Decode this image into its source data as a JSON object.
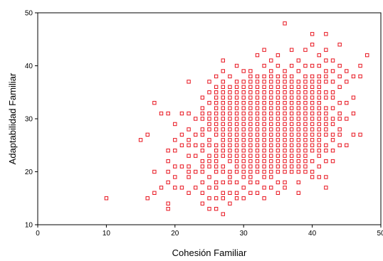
{
  "chart_data": {
    "type": "scatter",
    "title": "",
    "xlabel": "Cohesión Familiar",
    "ylabel": "Adaptabilidad Familiar",
    "xlim": [
      0,
      50
    ],
    "ylim": [
      10,
      50
    ],
    "x_ticks": [
      "0",
      "10",
      "20",
      "30",
      "40",
      "50"
    ],
    "y_ticks": [
      "10",
      "20",
      "30",
      "40",
      "50"
    ],
    "grid": false,
    "legend": "none",
    "marker": "hollow-square",
    "marker_color": "#e8141e",
    "points": [
      [
        10,
        15
      ],
      [
        15,
        26
      ],
      [
        16,
        15
      ],
      [
        16,
        27
      ],
      [
        17,
        16
      ],
      [
        17,
        20
      ],
      [
        17,
        33
      ],
      [
        18,
        17
      ],
      [
        18,
        31
      ],
      [
        19,
        13
      ],
      [
        19,
        14
      ],
      [
        19,
        18
      ],
      [
        19,
        20
      ],
      [
        19,
        22
      ],
      [
        19,
        24
      ],
      [
        19,
        31
      ],
      [
        20,
        17
      ],
      [
        20,
        19
      ],
      [
        20,
        21
      ],
      [
        20,
        24
      ],
      [
        20,
        26
      ],
      [
        20,
        29
      ],
      [
        21,
        17
      ],
      [
        21,
        21
      ],
      [
        21,
        25
      ],
      [
        21,
        27
      ],
      [
        21,
        31
      ],
      [
        22,
        16
      ],
      [
        22,
        19
      ],
      [
        22,
        20
      ],
      [
        22,
        21
      ],
      [
        22,
        23
      ],
      [
        22,
        25
      ],
      [
        22,
        26
      ],
      [
        22,
        28
      ],
      [
        22,
        31
      ],
      [
        22,
        37
      ],
      [
        23,
        17
      ],
      [
        23,
        20
      ],
      [
        23,
        23
      ],
      [
        23,
        25
      ],
      [
        23,
        27
      ],
      [
        23,
        30
      ],
      [
        24,
        14
      ],
      [
        24,
        16
      ],
      [
        24,
        18
      ],
      [
        24,
        20
      ],
      [
        24,
        21
      ],
      [
        24,
        22
      ],
      [
        24,
        24
      ],
      [
        24,
        25
      ],
      [
        24,
        27
      ],
      [
        24,
        28
      ],
      [
        24,
        30
      ],
      [
        24,
        31
      ],
      [
        24,
        32
      ],
      [
        24,
        34
      ],
      [
        25,
        13
      ],
      [
        25,
        15
      ],
      [
        25,
        17
      ],
      [
        25,
        19
      ],
      [
        25,
        21
      ],
      [
        25,
        22
      ],
      [
        25,
        23
      ],
      [
        25,
        25
      ],
      [
        25,
        26
      ],
      [
        25,
        28
      ],
      [
        25,
        29
      ],
      [
        25,
        30
      ],
      [
        25,
        31
      ],
      [
        25,
        33
      ],
      [
        25,
        35
      ],
      [
        25,
        37
      ],
      [
        26,
        13
      ],
      [
        26,
        15
      ],
      [
        26,
        17
      ],
      [
        26,
        18
      ],
      [
        26,
        20
      ],
      [
        26,
        21
      ],
      [
        26,
        22
      ],
      [
        26,
        23
      ],
      [
        26,
        24
      ],
      [
        26,
        25
      ],
      [
        26,
        27
      ],
      [
        26,
        28
      ],
      [
        26,
        29
      ],
      [
        26,
        30
      ],
      [
        26,
        31
      ],
      [
        26,
        32
      ],
      [
        26,
        33
      ],
      [
        26,
        34
      ],
      [
        26,
        35
      ],
      [
        26,
        36
      ],
      [
        26,
        38
      ],
      [
        27,
        12
      ],
      [
        27,
        15
      ],
      [
        27,
        16
      ],
      [
        27,
        18
      ],
      [
        27,
        20
      ],
      [
        27,
        21
      ],
      [
        27,
        23
      ],
      [
        27,
        24
      ],
      [
        27,
        25
      ],
      [
        27,
        26
      ],
      [
        27,
        27
      ],
      [
        27,
        28
      ],
      [
        27,
        29
      ],
      [
        27,
        30
      ],
      [
        27,
        31
      ],
      [
        27,
        32
      ],
      [
        27,
        33
      ],
      [
        27,
        34
      ],
      [
        27,
        35
      ],
      [
        27,
        36
      ],
      [
        27,
        37
      ],
      [
        27,
        39
      ],
      [
        27,
        41
      ],
      [
        28,
        14
      ],
      [
        28,
        16
      ],
      [
        28,
        18
      ],
      [
        28,
        19
      ],
      [
        28,
        20
      ],
      [
        28,
        22
      ],
      [
        28,
        23
      ],
      [
        28,
        24
      ],
      [
        28,
        25
      ],
      [
        28,
        26
      ],
      [
        28,
        27
      ],
      [
        28,
        28
      ],
      [
        28,
        29
      ],
      [
        28,
        30
      ],
      [
        28,
        31
      ],
      [
        28,
        32
      ],
      [
        28,
        33
      ],
      [
        28,
        34
      ],
      [
        28,
        35
      ],
      [
        28,
        36
      ],
      [
        28,
        38
      ],
      [
        29,
        15
      ],
      [
        29,
        16
      ],
      [
        29,
        18
      ],
      [
        29,
        20
      ],
      [
        29,
        21
      ],
      [
        29,
        22
      ],
      [
        29,
        23
      ],
      [
        29,
        24
      ],
      [
        29,
        25
      ],
      [
        29,
        26
      ],
      [
        29,
        27
      ],
      [
        29,
        28
      ],
      [
        29,
        29
      ],
      [
        29,
        30
      ],
      [
        29,
        31
      ],
      [
        29,
        32
      ],
      [
        29,
        33
      ],
      [
        29,
        34
      ],
      [
        29,
        35
      ],
      [
        29,
        36
      ],
      [
        29,
        37
      ],
      [
        29,
        40
      ],
      [
        30,
        15
      ],
      [
        30,
        17
      ],
      [
        30,
        19
      ],
      [
        30,
        20
      ],
      [
        30,
        21
      ],
      [
        30,
        22
      ],
      [
        30,
        23
      ],
      [
        30,
        24
      ],
      [
        30,
        25
      ],
      [
        30,
        26
      ],
      [
        30,
        27
      ],
      [
        30,
        28
      ],
      [
        30,
        29
      ],
      [
        30,
        30
      ],
      [
        30,
        31
      ],
      [
        30,
        32
      ],
      [
        30,
        33
      ],
      [
        30,
        34
      ],
      [
        30,
        35
      ],
      [
        30,
        36
      ],
      [
        30,
        37
      ],
      [
        30,
        39
      ],
      [
        31,
        16
      ],
      [
        31,
        18
      ],
      [
        31,
        19
      ],
      [
        31,
        20
      ],
      [
        31,
        21
      ],
      [
        31,
        22
      ],
      [
        31,
        23
      ],
      [
        31,
        24
      ],
      [
        31,
        25
      ],
      [
        31,
        26
      ],
      [
        31,
        27
      ],
      [
        31,
        28
      ],
      [
        31,
        29
      ],
      [
        31,
        30
      ],
      [
        31,
        31
      ],
      [
        31,
        32
      ],
      [
        31,
        33
      ],
      [
        31,
        34
      ],
      [
        31,
        35
      ],
      [
        31,
        36
      ],
      [
        31,
        37
      ],
      [
        31,
        38
      ],
      [
        31,
        39
      ],
      [
        32,
        16
      ],
      [
        32,
        18
      ],
      [
        32,
        20
      ],
      [
        32,
        21
      ],
      [
        32,
        22
      ],
      [
        32,
        23
      ],
      [
        32,
        24
      ],
      [
        32,
        25
      ],
      [
        32,
        26
      ],
      [
        32,
        27
      ],
      [
        32,
        28
      ],
      [
        32,
        29
      ],
      [
        32,
        30
      ],
      [
        32,
        31
      ],
      [
        32,
        32
      ],
      [
        32,
        33
      ],
      [
        32,
        34
      ],
      [
        32,
        35
      ],
      [
        32,
        36
      ],
      [
        32,
        37
      ],
      [
        32,
        38
      ],
      [
        32,
        42
      ],
      [
        33,
        15
      ],
      [
        33,
        17
      ],
      [
        33,
        19
      ],
      [
        33,
        20
      ],
      [
        33,
        21
      ],
      [
        33,
        22
      ],
      [
        33,
        23
      ],
      [
        33,
        24
      ],
      [
        33,
        25
      ],
      [
        33,
        26
      ],
      [
        33,
        27
      ],
      [
        33,
        28
      ],
      [
        33,
        29
      ],
      [
        33,
        30
      ],
      [
        33,
        31
      ],
      [
        33,
        32
      ],
      [
        33,
        33
      ],
      [
        33,
        34
      ],
      [
        33,
        35
      ],
      [
        33,
        36
      ],
      [
        33,
        37
      ],
      [
        33,
        38
      ],
      [
        33,
        40
      ],
      [
        33,
        43
      ],
      [
        34,
        17
      ],
      [
        34,
        19
      ],
      [
        34,
        20
      ],
      [
        34,
        21
      ],
      [
        34,
        22
      ],
      [
        34,
        23
      ],
      [
        34,
        24
      ],
      [
        34,
        25
      ],
      [
        34,
        26
      ],
      [
        34,
        27
      ],
      [
        34,
        28
      ],
      [
        34,
        29
      ],
      [
        34,
        30
      ],
      [
        34,
        31
      ],
      [
        34,
        32
      ],
      [
        34,
        33
      ],
      [
        34,
        34
      ],
      [
        34,
        35
      ],
      [
        34,
        36
      ],
      [
        34,
        37
      ],
      [
        34,
        38
      ],
      [
        34,
        39
      ],
      [
        34,
        41
      ],
      [
        35,
        16
      ],
      [
        35,
        18
      ],
      [
        35,
        20
      ],
      [
        35,
        21
      ],
      [
        35,
        22
      ],
      [
        35,
        23
      ],
      [
        35,
        24
      ],
      [
        35,
        25
      ],
      [
        35,
        26
      ],
      [
        35,
        27
      ],
      [
        35,
        28
      ],
      [
        35,
        29
      ],
      [
        35,
        30
      ],
      [
        35,
        31
      ],
      [
        35,
        32
      ],
      [
        35,
        33
      ],
      [
        35,
        34
      ],
      [
        35,
        35
      ],
      [
        35,
        36
      ],
      [
        35,
        37
      ],
      [
        35,
        38
      ],
      [
        35,
        40
      ],
      [
        35,
        42
      ],
      [
        36,
        17
      ],
      [
        36,
        18
      ],
      [
        36,
        20
      ],
      [
        36,
        21
      ],
      [
        36,
        22
      ],
      [
        36,
        23
      ],
      [
        36,
        24
      ],
      [
        36,
        25
      ],
      [
        36,
        26
      ],
      [
        36,
        27
      ],
      [
        36,
        28
      ],
      [
        36,
        29
      ],
      [
        36,
        30
      ],
      [
        36,
        31
      ],
      [
        36,
        32
      ],
      [
        36,
        33
      ],
      [
        36,
        34
      ],
      [
        36,
        35
      ],
      [
        36,
        36
      ],
      [
        36,
        37
      ],
      [
        36,
        38
      ],
      [
        36,
        39
      ],
      [
        36,
        48
      ],
      [
        37,
        20
      ],
      [
        37,
        21
      ],
      [
        37,
        22
      ],
      [
        37,
        23
      ],
      [
        37,
        24
      ],
      [
        37,
        25
      ],
      [
        37,
        26
      ],
      [
        37,
        27
      ],
      [
        37,
        28
      ],
      [
        37,
        29
      ],
      [
        37,
        30
      ],
      [
        37,
        31
      ],
      [
        37,
        32
      ],
      [
        37,
        33
      ],
      [
        37,
        34
      ],
      [
        37,
        35
      ],
      [
        37,
        36
      ],
      [
        37,
        37
      ],
      [
        37,
        38
      ],
      [
        37,
        40
      ],
      [
        37,
        43
      ],
      [
        38,
        16
      ],
      [
        38,
        18
      ],
      [
        38,
        20
      ],
      [
        38,
        21
      ],
      [
        38,
        22
      ],
      [
        38,
        23
      ],
      [
        38,
        24
      ],
      [
        38,
        25
      ],
      [
        38,
        26
      ],
      [
        38,
        27
      ],
      [
        38,
        28
      ],
      [
        38,
        29
      ],
      [
        38,
        30
      ],
      [
        38,
        31
      ],
      [
        38,
        32
      ],
      [
        38,
        33
      ],
      [
        38,
        34
      ],
      [
        38,
        35
      ],
      [
        38,
        36
      ],
      [
        38,
        37
      ],
      [
        38,
        39
      ],
      [
        38,
        41
      ],
      [
        39,
        20
      ],
      [
        39,
        21
      ],
      [
        39,
        22
      ],
      [
        39,
        23
      ],
      [
        39,
        24
      ],
      [
        39,
        25
      ],
      [
        39,
        26
      ],
      [
        39,
        27
      ],
      [
        39,
        28
      ],
      [
        39,
        29
      ],
      [
        39,
        30
      ],
      [
        39,
        31
      ],
      [
        39,
        32
      ],
      [
        39,
        33
      ],
      [
        39,
        34
      ],
      [
        39,
        35
      ],
      [
        39,
        36
      ],
      [
        39,
        37
      ],
      [
        39,
        38
      ],
      [
        39,
        40
      ],
      [
        39,
        43
      ],
      [
        40,
        19
      ],
      [
        40,
        20
      ],
      [
        40,
        22
      ],
      [
        40,
        24
      ],
      [
        40,
        25
      ],
      [
        40,
        26
      ],
      [
        40,
        27
      ],
      [
        40,
        28
      ],
      [
        40,
        29
      ],
      [
        40,
        30
      ],
      [
        40,
        31
      ],
      [
        40,
        32
      ],
      [
        40,
        33
      ],
      [
        40,
        34
      ],
      [
        40,
        35
      ],
      [
        40,
        36
      ],
      [
        40,
        37
      ],
      [
        40,
        38
      ],
      [
        40,
        40
      ],
      [
        40,
        44
      ],
      [
        40,
        46
      ],
      [
        41,
        19
      ],
      [
        41,
        21
      ],
      [
        41,
        23
      ],
      [
        41,
        24
      ],
      [
        41,
        25
      ],
      [
        41,
        26
      ],
      [
        41,
        27
      ],
      [
        41,
        28
      ],
      [
        41,
        29
      ],
      [
        41,
        30
      ],
      [
        41,
        31
      ],
      [
        41,
        32
      ],
      [
        41,
        33
      ],
      [
        41,
        34
      ],
      [
        41,
        35
      ],
      [
        41,
        36
      ],
      [
        41,
        37
      ],
      [
        41,
        38
      ],
      [
        41,
        40
      ],
      [
        41,
        42
      ],
      [
        42,
        17
      ],
      [
        42,
        19
      ],
      [
        42,
        22
      ],
      [
        42,
        24
      ],
      [
        42,
        25
      ],
      [
        42,
        27
      ],
      [
        42,
        28
      ],
      [
        42,
        29
      ],
      [
        42,
        30
      ],
      [
        42,
        31
      ],
      [
        42,
        32
      ],
      [
        42,
        34
      ],
      [
        42,
        35
      ],
      [
        42,
        37
      ],
      [
        42,
        38
      ],
      [
        42,
        39
      ],
      [
        42,
        41
      ],
      [
        42,
        43
      ],
      [
        42,
        46
      ],
      [
        43,
        22
      ],
      [
        43,
        24
      ],
      [
        43,
        26
      ],
      [
        43,
        27
      ],
      [
        43,
        29
      ],
      [
        43,
        30
      ],
      [
        43,
        32
      ],
      [
        43,
        34
      ],
      [
        43,
        35
      ],
      [
        43,
        37
      ],
      [
        43,
        39
      ],
      [
        43,
        41
      ],
      [
        44,
        25
      ],
      [
        44,
        27
      ],
      [
        44,
        28
      ],
      [
        44,
        30
      ],
      [
        44,
        31
      ],
      [
        44,
        33
      ],
      [
        44,
        36
      ],
      [
        44,
        38
      ],
      [
        44,
        40
      ],
      [
        44,
        44
      ],
      [
        45,
        25
      ],
      [
        45,
        30
      ],
      [
        45,
        33
      ],
      [
        45,
        37
      ],
      [
        45,
        39
      ],
      [
        46,
        27
      ],
      [
        46,
        31
      ],
      [
        46,
        34
      ],
      [
        46,
        38
      ],
      [
        47,
        27
      ],
      [
        47,
        38
      ],
      [
        47,
        40
      ],
      [
        48,
        42
      ]
    ]
  }
}
